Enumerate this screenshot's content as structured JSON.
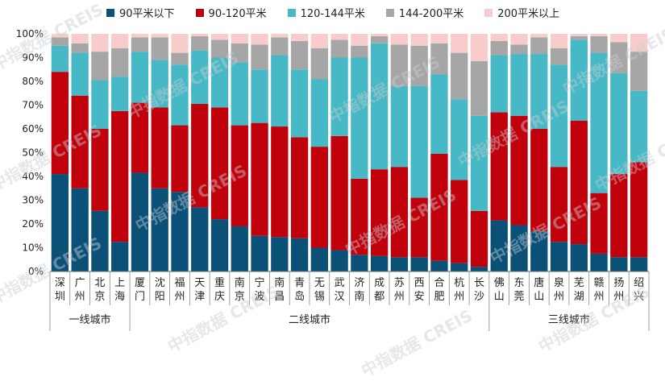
{
  "watermark": "中指数据 CREIS",
  "chart_data": {
    "type": "bar",
    "stacked": true,
    "title": "",
    "ylim": [
      0,
      100
    ],
    "yticks": [
      "0%",
      "10%",
      "20%",
      "30%",
      "40%",
      "50%",
      "60%",
      "70%",
      "80%",
      "90%",
      "100%"
    ],
    "categories": [
      "深圳",
      "广州",
      "北京",
      "上海",
      "厦门",
      "沈阳",
      "福州",
      "天津",
      "重庆",
      "南京",
      "宁波",
      "南昌",
      "青岛",
      "无锡",
      "武汉",
      "济南",
      "成都",
      "苏州",
      "西安",
      "合肥",
      "杭州",
      "长沙",
      "佛山",
      "东莞",
      "唐山",
      "泉州",
      "芜湖",
      "赣州",
      "扬州",
      "绍兴"
    ],
    "groups": [
      {
        "label": "一线城市",
        "start": 0,
        "end": 3
      },
      {
        "label": "二线城市",
        "start": 4,
        "end": 21
      },
      {
        "label": "三线城市",
        "start": 22,
        "end": 29
      }
    ],
    "series": [
      {
        "name": "90平米以下",
        "color": "#0b5177",
        "values": [
          41,
          35,
          25.5,
          12.5,
          41.5,
          35,
          33.5,
          27,
          22,
          19,
          15,
          14.5,
          14,
          10,
          9,
          7,
          6.5,
          6,
          6,
          4.5,
          3.5,
          2,
          21.5,
          19.5,
          17,
          12.5,
          11.5,
          7.5,
          6,
          6
        ]
      },
      {
        "name": "90-120平米",
        "color": "#c0000b",
        "values": [
          43,
          39,
          34.5,
          55,
          29.5,
          34,
          28,
          43.5,
          47,
          42.5,
          47.5,
          46.5,
          42.5,
          42.5,
          48,
          32,
          36.5,
          38,
          25,
          45,
          35,
          23.5,
          45.5,
          46,
          43,
          31.5,
          52,
          25.5,
          35,
          40
        ]
      },
      {
        "name": "120-144平米",
        "color": "#47b8c5",
        "values": [
          11,
          18,
          20.5,
          14.5,
          21.5,
          20,
          25.5,
          22.5,
          21,
          26.5,
          22.5,
          30,
          28.5,
          28.5,
          33,
          51,
          53,
          34,
          47,
          33.5,
          34,
          40,
          24,
          26,
          31.5,
          43,
          34,
          59,
          42.5,
          30
        ]
      },
      {
        "name": "144-200平米",
        "color": "#a6a6a6",
        "values": [
          3.5,
          4,
          12,
          12,
          6,
          9.5,
          5,
          6,
          7.5,
          8,
          10.5,
          7.5,
          12,
          13,
          7.5,
          5,
          3,
          17.5,
          17,
          13,
          19.5,
          23,
          6,
          4,
          7,
          7,
          1.5,
          7,
          13,
          16.5
        ]
      },
      {
        "name": "200平米以上",
        "color": "#f9cccc",
        "values": [
          1.5,
          4,
          7.5,
          6,
          1.5,
          1.5,
          8,
          1,
          2.5,
          4,
          4.5,
          1.5,
          3,
          6,
          2.5,
          5,
          1,
          4.5,
          5,
          4,
          8,
          11.5,
          3,
          4.5,
          1.5,
          6,
          1,
          1,
          3.5,
          7.5
        ]
      }
    ]
  }
}
